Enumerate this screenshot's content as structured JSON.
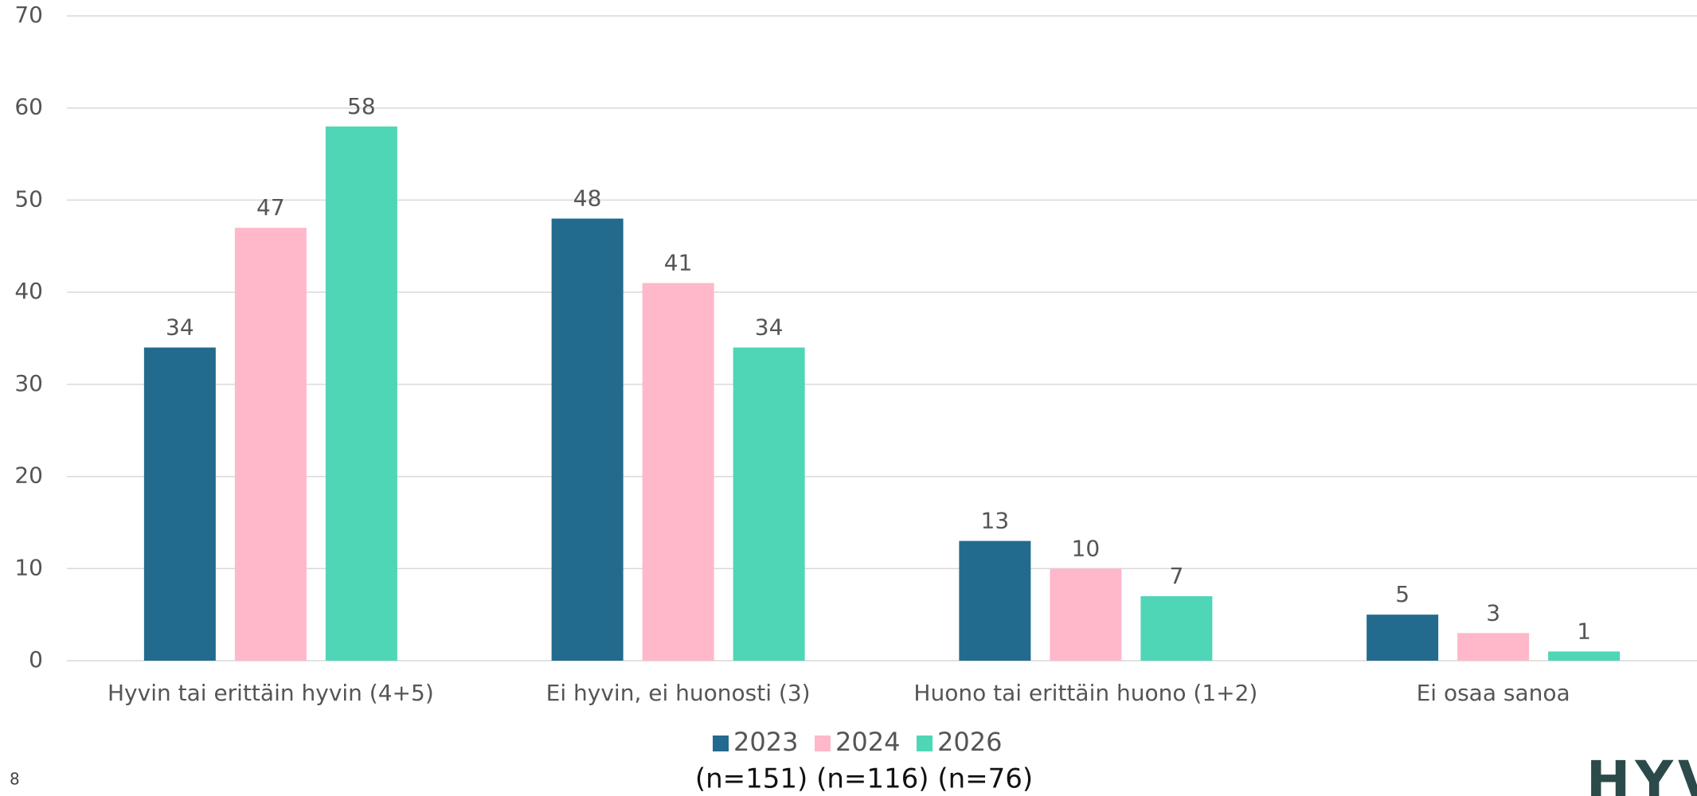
{
  "chart_data": {
    "type": "bar",
    "categories": [
      "Hyvin tai erittäin hyvin (4+5)",
      "Ei hyvin, ei huonosti (3)",
      "Huono tai erittäin huono (1+2)",
      "Ei osaa sanoa"
    ],
    "series": [
      {
        "name": "2023",
        "color": "#236b8e",
        "values": [
          34,
          48,
          13,
          5
        ]
      },
      {
        "name": "2024",
        "color": "#ffb8c9",
        "values": [
          47,
          41,
          10,
          3
        ]
      },
      {
        "name": "2026",
        "color": "#4fd6b6",
        "values": [
          58,
          34,
          7,
          1
        ]
      }
    ],
    "subtitle": "(n=151) (n=116) (n=76)",
    "page_number": "8",
    "logo": "HYV",
    "ylim": [
      0,
      70
    ],
    "yticks": [
      0,
      10,
      20,
      30,
      40,
      50,
      60,
      70
    ],
    "grid": true,
    "legend": "bottom"
  }
}
